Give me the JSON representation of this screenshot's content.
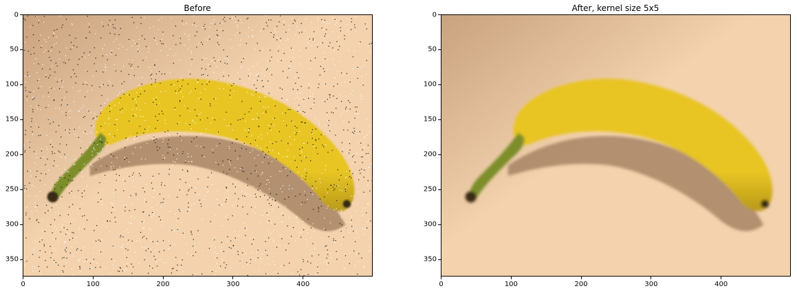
{
  "figure": {
    "panels": [
      {
        "title": "Before",
        "image_content": "banana on a beige countertop with salt-and-pepper noise",
        "noisy": true,
        "x_ticks": [
          "0",
          "100",
          "200",
          "300",
          "400"
        ],
        "y_ticks": [
          "0",
          "50",
          "100",
          "150",
          "200",
          "250",
          "300",
          "350"
        ]
      },
      {
        "title": "After, kernel size 5x5",
        "image_content": "banana on a beige countertop, smoothed by median filter",
        "noisy": false,
        "x_ticks": [
          "0",
          "100",
          "200",
          "300",
          "400"
        ],
        "y_ticks": [
          "0",
          "50",
          "100",
          "150",
          "200",
          "250",
          "300",
          "350"
        ]
      }
    ]
  },
  "colors": {
    "background_light": "#f3d2ad",
    "background_dark": "#c9a27f",
    "banana": "#e8c523",
    "banana_shadow_side": "#b99a1b",
    "stem": "#7b8d2c",
    "tip": "#3a2b15",
    "shadow": "#9c7a5c"
  },
  "image_extent": {
    "width": 500,
    "height": 375
  }
}
